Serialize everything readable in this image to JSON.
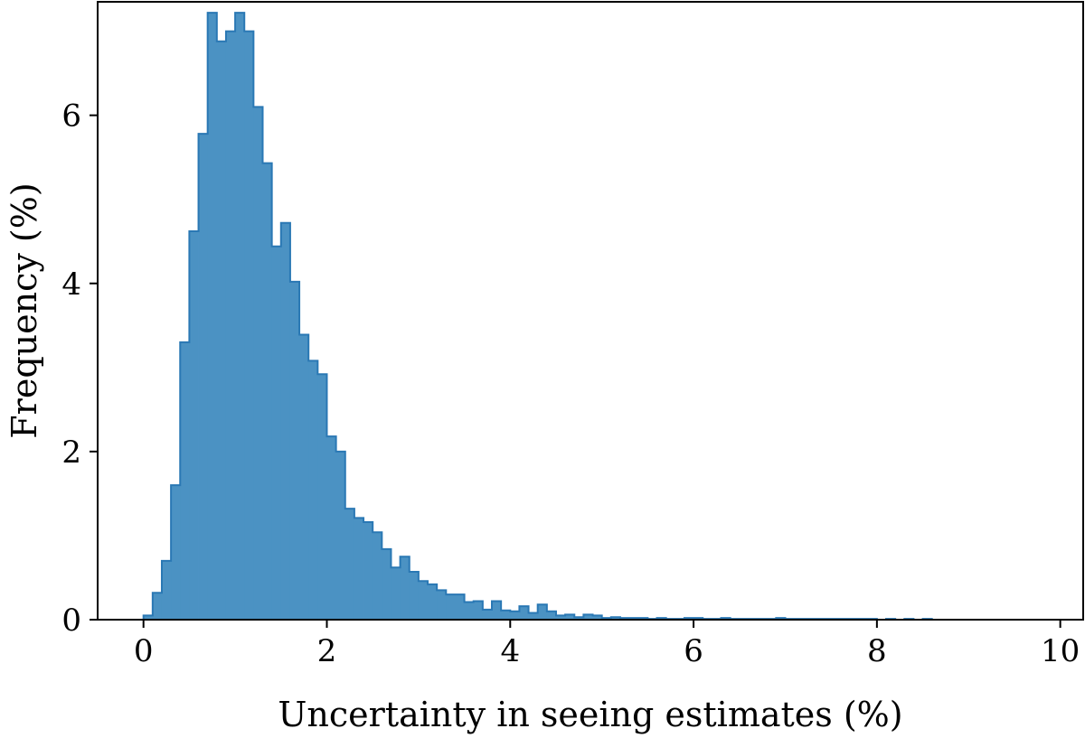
{
  "chart_data": {
    "type": "bar",
    "xlabel": "Uncertainty in seeing estimates (%)",
    "ylabel": "Frequency (%)",
    "xlim": [
      -0.5,
      10.25
    ],
    "ylim": [
      0,
      7.35
    ],
    "grid": false,
    "bin_width": 0.1,
    "bin_start": 0.0,
    "values": [
      0.05,
      0.32,
      0.7,
      1.6,
      3.3,
      4.62,
      5.78,
      7.22,
      6.88,
      7.0,
      7.22,
      7.0,
      6.1,
      5.43,
      4.44,
      4.72,
      4.02,
      3.39,
      3.08,
      2.92,
      2.18,
      2.0,
      1.32,
      1.21,
      1.16,
      1.04,
      0.84,
      0.62,
      0.75,
      0.57,
      0.46,
      0.42,
      0.35,
      0.3,
      0.3,
      0.21,
      0.22,
      0.12,
      0.22,
      0.11,
      0.1,
      0.16,
      0.08,
      0.18,
      0.1,
      0.05,
      0.06,
      0.03,
      0.06,
      0.05,
      0.02,
      0.03,
      0.02,
      0.02,
      0.02,
      0.01,
      0.02,
      0.01,
      0.01,
      0.02,
      0.02,
      0.01,
      0.01,
      0.02,
      0.01,
      0.01,
      0.01,
      0.01,
      0.01,
      0.02,
      0.01,
      0.01,
      0.01,
      0.01,
      0.01,
      0.01,
      0.01,
      0.01,
      0.01,
      0.01,
      0.0,
      0.01,
      0.0,
      0.01,
      0.0,
      0.01,
      0.0,
      0.0,
      0.0,
      0.0,
      0.0,
      0.0,
      0.0,
      0.0,
      0.0,
      0.0,
      0.0,
      0.0,
      0.0,
      0.0
    ],
    "xticks": [
      0,
      2,
      4,
      6,
      8,
      10
    ],
    "xtick_labels": [
      "0",
      "2",
      "4",
      "6",
      "8",
      "10"
    ],
    "yticks": [
      0,
      2,
      4,
      6
    ],
    "ytick_labels": [
      "0",
      "2",
      "4",
      "6"
    ],
    "fill_color": "#4b92c3",
    "edge_color": "#2a78b4"
  }
}
